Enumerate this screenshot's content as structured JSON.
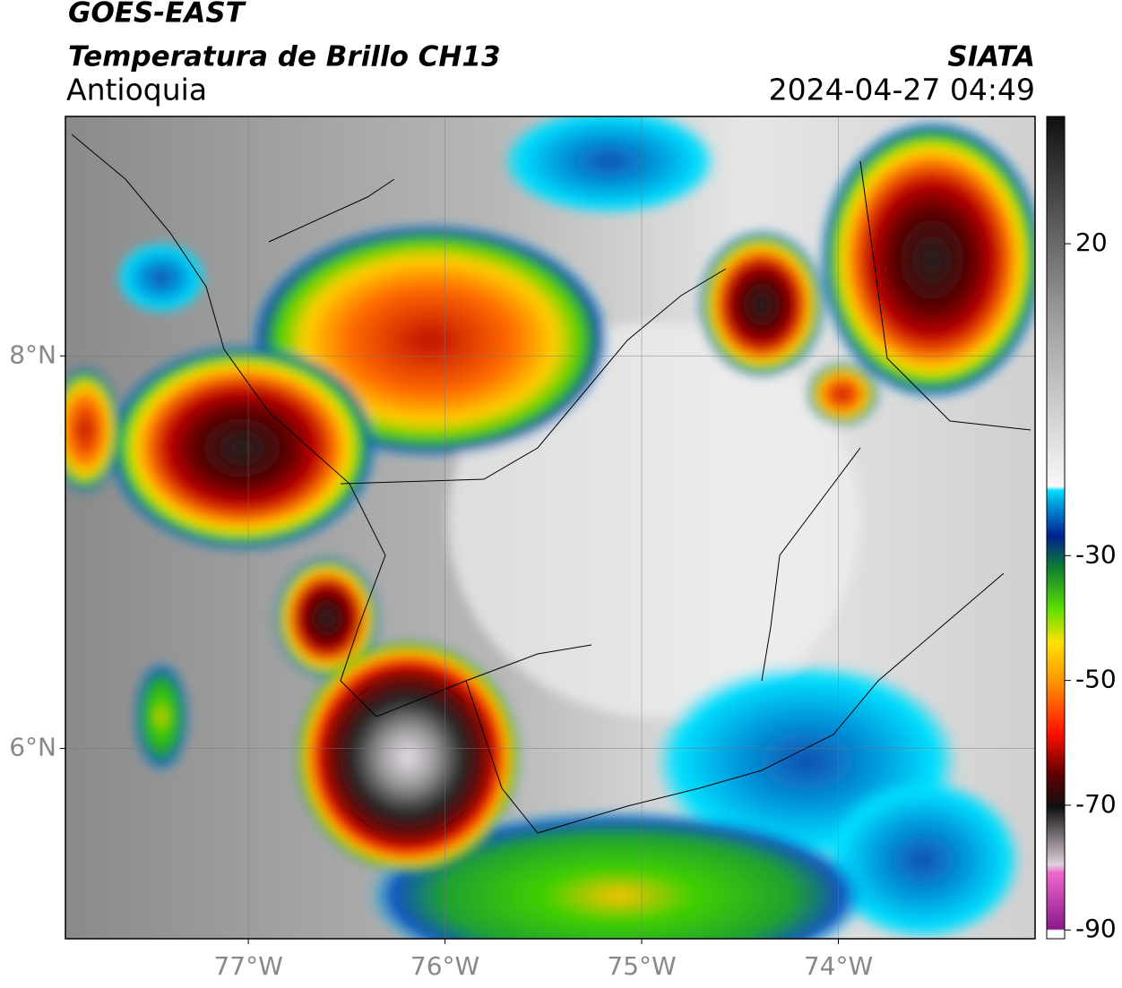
{
  "header": {
    "title": "GOES-EAST",
    "subtitle": "Temperatura de Brillo CH13",
    "region": "Antioquia",
    "source": "SIATA",
    "datetime": "2024-04-27 04:49"
  },
  "map": {
    "xlim": [
      -77.93,
      -73.0
    ],
    "ylim": [
      5.03,
      9.22
    ],
    "xticks": [
      {
        "value": -77,
        "label": "77°W"
      },
      {
        "value": -76,
        "label": "76°W"
      },
      {
        "value": -75,
        "label": "75°W"
      },
      {
        "value": -74,
        "label": "74°W"
      }
    ],
    "yticks": [
      {
        "value": 6,
        "label": "6°N"
      },
      {
        "value": 8,
        "label": "8°N"
      }
    ]
  },
  "colorbar": {
    "lim": [
      -91.4,
      40.4
    ],
    "ticks": [
      20,
      -30,
      -50,
      -70,
      -90
    ]
  }
}
